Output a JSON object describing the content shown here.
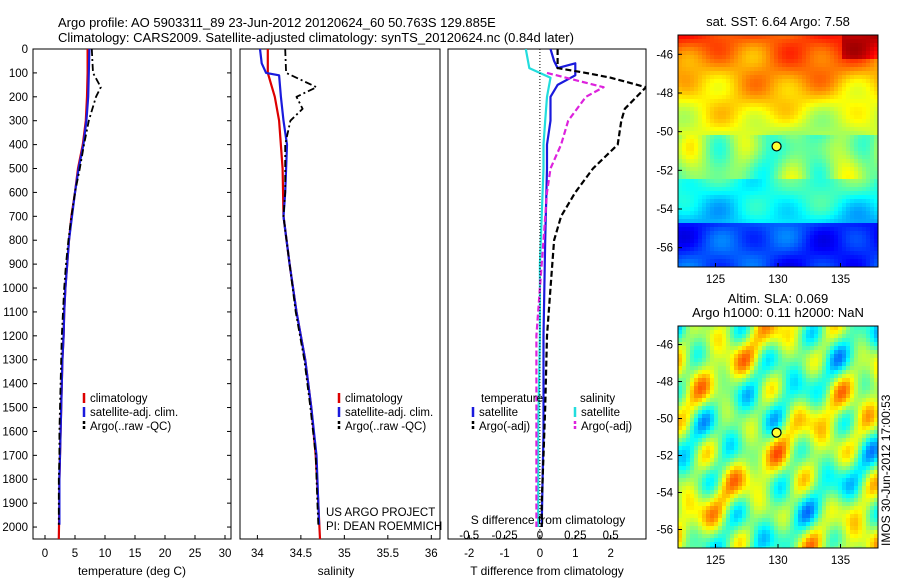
{
  "title_line1": "Argo profile: AO 5903311_89 23-Jun-2012 20120624_60 50.763S 129.885E",
  "title_line2": "Climatology: CARS2009. Satellite-adjusted climatology: synTS_20120624.nc (0.84d later)",
  "credit_line1": "US ARGO PROJECT",
  "credit_line2": "PI: DEAN ROEMMICH",
  "timestamp": "IMOS 30-Jun-2012 17:00:53",
  "colors": {
    "climatology": "#dd0000",
    "satellite": "#1a1add",
    "argo": "#000000",
    "sat_cyan": "#22dddd",
    "sal_adj": "#dd22dd"
  },
  "chart_data": [
    {
      "type": "line",
      "xlabel": "temperature (deg C)",
      "xticks": [
        "0",
        "5",
        "10",
        "15",
        "20",
        "25",
        "30"
      ],
      "xlim": [
        -2,
        31
      ],
      "ylim": [
        0,
        2050
      ],
      "yticks": [
        "0",
        "100",
        "200",
        "300",
        "400",
        "500",
        "600",
        "700",
        "800",
        "900",
        "1000",
        "1100",
        "1200",
        "1300",
        "1400",
        "1500",
        "1600",
        "1700",
        "1800",
        "1900",
        "2000"
      ],
      "legend": [
        "climatology",
        "satellite-adj. clim.",
        "Argo(..raw -QC)"
      ],
      "series": [
        {
          "name": "climatology",
          "style": "solid",
          "color": "#dd0000",
          "points": [
            [
              7.1,
              0
            ],
            [
              7.1,
              100
            ],
            [
              7.0,
              200
            ],
            [
              6.8,
              300
            ],
            [
              6.3,
              400
            ],
            [
              5.5,
              500
            ],
            [
              5.0,
              600
            ],
            [
              4.4,
              700
            ],
            [
              4.0,
              800
            ],
            [
              3.7,
              900
            ],
            [
              3.4,
              1000
            ],
            [
              3.2,
              1100
            ],
            [
              3.1,
              1200
            ],
            [
              2.9,
              1300
            ],
            [
              2.8,
              1400
            ],
            [
              2.7,
              1500
            ],
            [
              2.6,
              1600
            ],
            [
              2.5,
              1700
            ],
            [
              2.4,
              1800
            ],
            [
              2.4,
              1900
            ],
            [
              2.3,
              2050
            ]
          ]
        },
        {
          "name": "satellite-adj. clim.",
          "style": "solid",
          "color": "#1a1add",
          "points": [
            [
              7.4,
              0
            ],
            [
              7.3,
              100
            ],
            [
              7.2,
              200
            ],
            [
              6.9,
              300
            ],
            [
              6.4,
              400
            ],
            [
              5.6,
              500
            ],
            [
              5.0,
              600
            ],
            [
              4.5,
              700
            ],
            [
              4.0,
              800
            ],
            [
              3.7,
              900
            ],
            [
              3.4,
              1000
            ],
            [
              3.2,
              1100
            ],
            [
              3.1,
              1200
            ],
            [
              2.9,
              1300
            ],
            [
              2.8,
              1400
            ],
            [
              2.7,
              1500
            ],
            [
              2.6,
              1600
            ],
            [
              2.5,
              1700
            ],
            [
              2.4,
              1800
            ],
            [
              2.4,
              1900
            ],
            [
              2.4,
              1990
            ]
          ]
        },
        {
          "name": "Argo(..raw -QC)",
          "style": "dashdot",
          "color": "#000000",
          "points": [
            [
              7.8,
              0
            ],
            [
              8.0,
              100
            ],
            [
              9.3,
              160
            ],
            [
              8.5,
              200
            ],
            [
              7.3,
              300
            ],
            [
              6.5,
              400
            ],
            [
              5.8,
              500
            ],
            [
              5.0,
              600
            ],
            [
              4.4,
              700
            ],
            [
              3.9,
              800
            ],
            [
              3.5,
              900
            ],
            [
              3.2,
              1000
            ],
            [
              3.0,
              1100
            ],
            [
              2.8,
              1200
            ],
            [
              2.7,
              1300
            ],
            [
              2.6,
              1400
            ],
            [
              2.5,
              1500
            ],
            [
              2.4,
              1600
            ],
            [
              2.4,
              1700
            ],
            [
              2.3,
              1800
            ],
            [
              2.3,
              1900
            ],
            [
              2.3,
              1990
            ]
          ]
        }
      ]
    },
    {
      "type": "line",
      "xlabel": "salinity",
      "xticks": [
        "34",
        "34.5",
        "35",
        "35.5",
        "36"
      ],
      "xlim": [
        33.8,
        36.1
      ],
      "ylim": [
        0,
        2050
      ],
      "legend": [
        "climatology",
        "satellite-adj. clim.",
        "Argo(..raw -QC)"
      ],
      "series": [
        {
          "name": "climatology",
          "style": "solid",
          "color": "#dd0000",
          "points": [
            [
              34.12,
              0
            ],
            [
              34.12,
              100
            ],
            [
              34.16,
              150
            ],
            [
              34.2,
              200
            ],
            [
              34.25,
              300
            ],
            [
              34.29,
              500
            ],
            [
              34.3,
              700
            ],
            [
              34.37,
              900
            ],
            [
              34.45,
              1100
            ],
            [
              34.55,
              1300
            ],
            [
              34.62,
              1500
            ],
            [
              34.67,
              1700
            ],
            [
              34.7,
              1900
            ],
            [
              34.72,
              2050
            ]
          ]
        },
        {
          "name": "satellite-adj. clim.",
          "style": "solid",
          "color": "#1a1add",
          "points": [
            [
              34.03,
              0
            ],
            [
              34.05,
              60
            ],
            [
              34.1,
              100
            ],
            [
              34.25,
              110
            ],
            [
              34.27,
              200
            ],
            [
              34.3,
              300
            ],
            [
              34.34,
              400
            ],
            [
              34.32,
              600
            ],
            [
              34.3,
              700
            ],
            [
              34.37,
              900
            ],
            [
              34.45,
              1100
            ],
            [
              34.55,
              1300
            ],
            [
              34.62,
              1500
            ],
            [
              34.68,
              1700
            ],
            [
              34.7,
              1900
            ],
            [
              34.71,
              1990
            ]
          ]
        },
        {
          "name": "Argo(..raw -QC)",
          "style": "dashdot",
          "color": "#000000",
          "points": [
            [
              34.32,
              0
            ],
            [
              34.33,
              100
            ],
            [
              34.68,
              160
            ],
            [
              34.45,
              200
            ],
            [
              34.52,
              250
            ],
            [
              34.38,
              300
            ],
            [
              34.32,
              400
            ],
            [
              34.32,
              600
            ],
            [
              34.3,
              700
            ],
            [
              34.37,
              900
            ],
            [
              34.44,
              1100
            ],
            [
              34.54,
              1300
            ],
            [
              34.61,
              1500
            ],
            [
              34.67,
              1700
            ],
            [
              34.69,
              1900
            ],
            [
              34.7,
              1990
            ]
          ]
        }
      ]
    },
    {
      "type": "line",
      "xlabel": "T difference from climatology",
      "xlabel_top": "S difference from climatology",
      "xticks": [
        "-2",
        "-1",
        "0",
        "1",
        "2"
      ],
      "xticks_s": [
        "-0.5",
        "-0.25",
        "0",
        "0.25",
        "0.5"
      ],
      "xlim": [
        -2.6,
        3.0
      ],
      "ylim": [
        0,
        2050
      ],
      "legend_left_title": "temperature",
      "legend_right_title": "salinity",
      "legend": [
        "satellite",
        "Argo(-adj)",
        "satellite",
        "Argo(-adj)"
      ],
      "series": [
        {
          "name": "temperature satellite",
          "style": "solid",
          "color": "#1a1add",
          "points": [
            [
              0.3,
              0
            ],
            [
              0.4,
              50
            ],
            [
              0.5,
              80
            ],
            [
              1.0,
              60
            ],
            [
              1.0,
              110
            ],
            [
              0.5,
              150
            ],
            [
              0.3,
              200
            ],
            [
              0.3,
              300
            ],
            [
              0.2,
              400
            ],
            [
              0.2,
              500
            ],
            [
              0.15,
              800
            ],
            [
              0.1,
              1200
            ],
            [
              0.1,
              1600
            ],
            [
              0.05,
              2000
            ]
          ]
        },
        {
          "name": "temperature Argo(-adj)",
          "style": "dashed",
          "color": "#000000",
          "points": [
            [
              0.5,
              0
            ],
            [
              0.5,
              80
            ],
            [
              1.3,
              100
            ],
            [
              2.0,
              120
            ],
            [
              3.0,
              160
            ],
            [
              2.4,
              250
            ],
            [
              2.3,
              300
            ],
            [
              2.2,
              400
            ],
            [
              1.5,
              500
            ],
            [
              1.0,
              600
            ],
            [
              0.6,
              700
            ],
            [
              0.4,
              800
            ],
            [
              0.3,
              1000
            ],
            [
              0.2,
              1200
            ],
            [
              0.15,
              1500
            ],
            [
              0.1,
              1700
            ],
            [
              0.05,
              1900
            ],
            [
              0.05,
              2000
            ]
          ]
        },
        {
          "name": "salinity satellite",
          "style": "solid",
          "color": "#22dddd",
          "points": [
            [
              -0.4,
              0
            ],
            [
              -0.3,
              80
            ],
            [
              0.3,
              120
            ],
            [
              0.2,
              200
            ],
            [
              0.15,
              300
            ],
            [
              0.1,
              400
            ],
            [
              0.1,
              500
            ],
            [
              0.05,
              700
            ],
            [
              0.0,
              900
            ],
            [
              0.0,
              1200
            ],
            [
              -0.05,
              1600
            ],
            [
              -0.05,
              2000
            ]
          ]
        },
        {
          "name": "salinity Argo(-adj)",
          "style": "dashed",
          "color": "#dd22dd",
          "points": [
            [
              0.2,
              100
            ],
            [
              1.0,
              130
            ],
            [
              1.8,
              160
            ],
            [
              1.3,
              200
            ],
            [
              0.8,
              300
            ],
            [
              0.6,
              400
            ],
            [
              0.3,
              500
            ],
            [
              0.2,
              600
            ],
            [
              0.1,
              800
            ],
            [
              0.0,
              1000
            ],
            [
              -0.1,
              1200
            ],
            [
              -0.1,
              1500
            ],
            [
              -0.1,
              1800
            ],
            [
              -0.1,
              2000
            ]
          ]
        },
        {
          "name": "zero line",
          "style": "dotted",
          "color": "#000000",
          "points": [
            [
              0,
              0
            ],
            [
              0,
              2050
            ]
          ]
        }
      ]
    },
    {
      "type": "heatmap",
      "title": "sat. SST: 6.64 Argo: 7.58",
      "xticks": [
        "125",
        "130",
        "135"
      ],
      "yticks": [
        "-46",
        "-48",
        "-50",
        "-52",
        "-54",
        "-56"
      ],
      "xlim": [
        122,
        138
      ],
      "ylim": [
        -57,
        -45
      ],
      "profile_marker": [
        129.885,
        -50.763
      ]
    },
    {
      "type": "heatmap",
      "title_line1": "Altim. SLA: 0.069",
      "title_line2": "Argo h1000: 0.11 h2000: NaN",
      "xticks": [
        "125",
        "130",
        "135"
      ],
      "yticks": [
        "-46",
        "-48",
        "-50",
        "-52",
        "-54",
        "-56"
      ],
      "xlim": [
        122,
        138
      ],
      "ylim": [
        -57,
        -45
      ],
      "profile_marker": [
        129.885,
        -50.763
      ]
    }
  ]
}
